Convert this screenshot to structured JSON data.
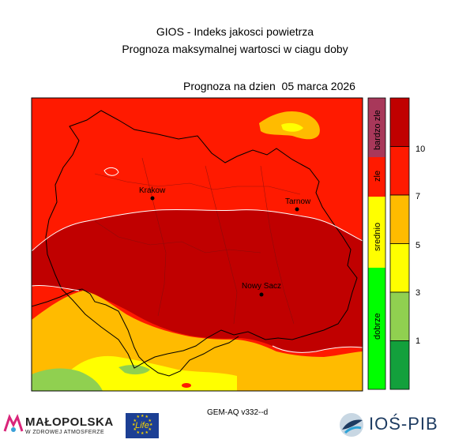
{
  "header": {
    "title_line1": "GIOS - Indeks jakosci powietrza",
    "title_line2": "Prognoza maksymalnej wartosci w ciagu doby",
    "date_line": "Prognoza na dzien  05 marca 2026"
  },
  "map": {
    "cities": [
      {
        "name": "Krakow"
      },
      {
        "name": "Tarnow"
      },
      {
        "name": "Nowy Sacz"
      }
    ]
  },
  "categories": [
    {
      "label": "bardzo zle",
      "color": "#a8385a"
    },
    {
      "label": "zle",
      "color": "#ff1a00"
    },
    {
      "label": "srednio",
      "color": "#ffff00"
    },
    {
      "label": "dobrze",
      "color": "#00ff00"
    }
  ],
  "scale": {
    "ticks": [
      "10",
      "7",
      "5",
      "3",
      "1"
    ],
    "colors": [
      "#c00000",
      "#ff1a00",
      "#ffbb00",
      "#ffff00",
      "#90d050",
      "#13a03c"
    ]
  },
  "footer": {
    "model": "GEM-AQ v332--d",
    "malopolska_name": "MAŁOPOLSKA",
    "malopolska_tagline": "W ZDROWEJ ATMOSFERZE",
    "eu_life": "Life",
    "ios_name": "IOŚ-PIB"
  },
  "colors": {
    "dark_red": "#c00000",
    "red": "#ff1a00",
    "orange": "#ffbb00",
    "yellow": "#ffff00",
    "light_green": "#90d050",
    "green": "#13a03c"
  }
}
